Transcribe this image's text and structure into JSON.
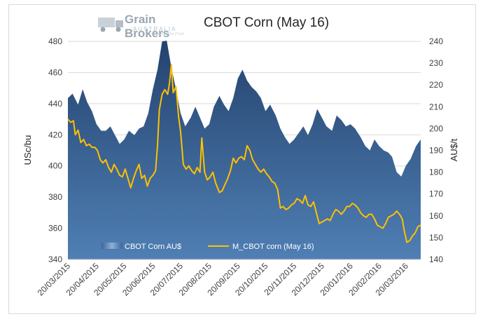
{
  "chart_data": {
    "type": "area",
    "title": "CBOT Corn (May 16)",
    "logo": {
      "brand": "Grain Brokers",
      "sub": "AUSTRALIA",
      "tag": "Ahead of the Field"
    },
    "y_left": {
      "label": "USc/bu",
      "range": [
        340,
        480
      ],
      "ticks": [
        "340",
        "360",
        "380",
        "400",
        "420",
        "440",
        "460",
        "480"
      ]
    },
    "y_right": {
      "label": "AU$/t",
      "range": [
        140,
        240
      ],
      "ticks": [
        "140",
        "150",
        "160",
        "170",
        "180",
        "190",
        "200",
        "210",
        "220",
        "230",
        "240"
      ]
    },
    "x_ticks": [
      "20/03/2015",
      "20/04/2015",
      "20/05/2015",
      "20/06/2015",
      "20/07/2015",
      "20/08/2015",
      "20/09/2015",
      "20/10/2015",
      "20/11/2015",
      "20/12/2015",
      "20/01/2016",
      "20/02/2016",
      "20/03/2016"
    ],
    "x_range": [
      "2015-03-20",
      "2016-04-05"
    ],
    "grid": "horizontal",
    "legend_position": "bottom-left inside plot",
    "series": [
      {
        "name": "CBOT Corn AU$",
        "kind": "area",
        "axis": "right",
        "color": "#2f5383",
        "points": [
          [
            "2015-03-20",
            214
          ],
          [
            "2015-03-25",
            216
          ],
          [
            "2015-03-31",
            211
          ],
          [
            "2015-04-05",
            218
          ],
          [
            "2015-04-10",
            212
          ],
          [
            "2015-04-15",
            208
          ],
          [
            "2015-04-20",
            202
          ],
          [
            "2015-04-25",
            199
          ],
          [
            "2015-04-30",
            199
          ],
          [
            "2015-05-05",
            201
          ],
          [
            "2015-05-10",
            197
          ],
          [
            "2015-05-15",
            193
          ],
          [
            "2015-05-20",
            195
          ],
          [
            "2015-05-25",
            199
          ],
          [
            "2015-05-31",
            197
          ],
          [
            "2015-06-05",
            200
          ],
          [
            "2015-06-10",
            201
          ],
          [
            "2015-06-15",
            207
          ],
          [
            "2015-06-20",
            218
          ],
          [
            "2015-06-25",
            227
          ],
          [
            "2015-06-30",
            240
          ],
          [
            "2015-07-05",
            241
          ],
          [
            "2015-07-10",
            228
          ],
          [
            "2015-07-15",
            218
          ],
          [
            "2015-07-20",
            207
          ],
          [
            "2015-07-25",
            201
          ],
          [
            "2015-07-31",
            205
          ],
          [
            "2015-08-05",
            210
          ],
          [
            "2015-08-10",
            205
          ],
          [
            "2015-08-15",
            200
          ],
          [
            "2015-08-20",
            202
          ],
          [
            "2015-08-25",
            210
          ],
          [
            "2015-08-31",
            215
          ],
          [
            "2015-09-05",
            211
          ],
          [
            "2015-09-10",
            208
          ],
          [
            "2015-09-15",
            214
          ],
          [
            "2015-09-20",
            223
          ],
          [
            "2015-09-25",
            227
          ],
          [
            "2015-09-30",
            222
          ],
          [
            "2015-10-05",
            219
          ],
          [
            "2015-10-10",
            217
          ],
          [
            "2015-10-15",
            214
          ],
          [
            "2015-10-20",
            208
          ],
          [
            "2015-10-25",
            211
          ],
          [
            "2015-10-31",
            206
          ],
          [
            "2015-11-05",
            200
          ],
          [
            "2015-11-10",
            196
          ],
          [
            "2015-11-15",
            193
          ],
          [
            "2015-11-20",
            195
          ],
          [
            "2015-11-25",
            198
          ],
          [
            "2015-11-30",
            201
          ],
          [
            "2015-12-05",
            197
          ],
          [
            "2015-12-10",
            202
          ],
          [
            "2015-12-15",
            209
          ],
          [
            "2015-12-20",
            205
          ],
          [
            "2015-12-25",
            201
          ],
          [
            "2015-12-31",
            199
          ],
          [
            "2016-01-05",
            206
          ],
          [
            "2016-01-10",
            204
          ],
          [
            "2016-01-15",
            201
          ],
          [
            "2016-01-20",
            202
          ],
          [
            "2016-01-25",
            200
          ],
          [
            "2016-01-31",
            196
          ],
          [
            "2016-02-05",
            192
          ],
          [
            "2016-02-10",
            190
          ],
          [
            "2016-02-15",
            195
          ],
          [
            "2016-02-20",
            192
          ],
          [
            "2016-02-25",
            190
          ],
          [
            "2016-03-01",
            189
          ],
          [
            "2016-03-05",
            187
          ],
          [
            "2016-03-10",
            180
          ],
          [
            "2016-03-15",
            178
          ],
          [
            "2016-03-20",
            183
          ],
          [
            "2016-03-25",
            186
          ],
          [
            "2016-03-31",
            192
          ],
          [
            "2016-04-05",
            195
          ]
        ]
      },
      {
        "name": "M_CBOT corn (May 16)",
        "kind": "line",
        "axis": "left",
        "color": "#ffc000",
        "points": [
          [
            "2015-03-20",
            430
          ],
          [
            "2015-03-23",
            428
          ],
          [
            "2015-03-26",
            429
          ],
          [
            "2015-03-28",
            420
          ],
          [
            "2015-03-31",
            423
          ],
          [
            "2015-04-03",
            415
          ],
          [
            "2015-04-06",
            417
          ],
          [
            "2015-04-09",
            413
          ],
          [
            "2015-04-12",
            414
          ],
          [
            "2015-04-15",
            412
          ],
          [
            "2015-04-18",
            412
          ],
          [
            "2015-04-21",
            410
          ],
          [
            "2015-04-24",
            404
          ],
          [
            "2015-04-27",
            402
          ],
          [
            "2015-04-30",
            404
          ],
          [
            "2015-05-03",
            399
          ],
          [
            "2015-05-06",
            396
          ],
          [
            "2015-05-09",
            401
          ],
          [
            "2015-05-12",
            398
          ],
          [
            "2015-05-15",
            394
          ],
          [
            "2015-05-18",
            393
          ],
          [
            "2015-05-21",
            398
          ],
          [
            "2015-05-24",
            392
          ],
          [
            "2015-05-27",
            386
          ],
          [
            "2015-05-30",
            392
          ],
          [
            "2015-06-02",
            397
          ],
          [
            "2015-06-05",
            401
          ],
          [
            "2015-06-08",
            392
          ],
          [
            "2015-06-11",
            394
          ],
          [
            "2015-06-14",
            387
          ],
          [
            "2015-06-17",
            392
          ],
          [
            "2015-06-20",
            394
          ],
          [
            "2015-06-23",
            397
          ],
          [
            "2015-06-25",
            413
          ],
          [
            "2015-06-27",
            436
          ],
          [
            "2015-06-30",
            446
          ],
          [
            "2015-07-03",
            449
          ],
          [
            "2015-07-06",
            446
          ],
          [
            "2015-07-08",
            453
          ],
          [
            "2015-07-10",
            465
          ],
          [
            "2015-07-12",
            447
          ],
          [
            "2015-07-15",
            451
          ],
          [
            "2015-07-18",
            431
          ],
          [
            "2015-07-20",
            422
          ],
          [
            "2015-07-23",
            401
          ],
          [
            "2015-07-26",
            398
          ],
          [
            "2015-07-29",
            400
          ],
          [
            "2015-08-01",
            397
          ],
          [
            "2015-08-04",
            395
          ],
          [
            "2015-08-07",
            399
          ],
          [
            "2015-08-10",
            396
          ],
          [
            "2015-08-12",
            418
          ],
          [
            "2015-08-15",
            396
          ],
          [
            "2015-08-18",
            391
          ],
          [
            "2015-08-21",
            393
          ],
          [
            "2015-08-24",
            396
          ],
          [
            "2015-08-27",
            389
          ],
          [
            "2015-08-31",
            383
          ],
          [
            "2015-09-03",
            384
          ],
          [
            "2015-09-06",
            388
          ],
          [
            "2015-09-09",
            392
          ],
          [
            "2015-09-12",
            397
          ],
          [
            "2015-09-15",
            405
          ],
          [
            "2015-09-18",
            402
          ],
          [
            "2015-09-21",
            405
          ],
          [
            "2015-09-24",
            406
          ],
          [
            "2015-09-27",
            404
          ],
          [
            "2015-09-30",
            413
          ],
          [
            "2015-10-03",
            410
          ],
          [
            "2015-10-06",
            404
          ],
          [
            "2015-10-09",
            401
          ],
          [
            "2015-10-12",
            398
          ],
          [
            "2015-10-15",
            396
          ],
          [
            "2015-10-18",
            398
          ],
          [
            "2015-10-21",
            395
          ],
          [
            "2015-10-24",
            393
          ],
          [
            "2015-10-27",
            390
          ],
          [
            "2015-10-30",
            389
          ],
          [
            "2015-11-02",
            385
          ],
          [
            "2015-11-05",
            373
          ],
          [
            "2015-11-08",
            374
          ],
          [
            "2015-11-11",
            372
          ],
          [
            "2015-11-14",
            373
          ],
          [
            "2015-11-17",
            375
          ],
          [
            "2015-11-20",
            376
          ],
          [
            "2015-11-23",
            379
          ],
          [
            "2015-11-26",
            378
          ],
          [
            "2015-11-29",
            376
          ],
          [
            "2015-12-02",
            381
          ],
          [
            "2015-12-05",
            375
          ],
          [
            "2015-12-08",
            374
          ],
          [
            "2015-12-11",
            377
          ],
          [
            "2015-12-14",
            370
          ],
          [
            "2015-12-17",
            363
          ],
          [
            "2015-12-20",
            364
          ],
          [
            "2015-12-23",
            365
          ],
          [
            "2015-12-26",
            366
          ],
          [
            "2015-12-29",
            365
          ],
          [
            "2016-01-01",
            369
          ],
          [
            "2016-01-04",
            372
          ],
          [
            "2016-01-07",
            371
          ],
          [
            "2016-01-10",
            369
          ],
          [
            "2016-01-13",
            371
          ],
          [
            "2016-01-16",
            374
          ],
          [
            "2016-01-19",
            374
          ],
          [
            "2016-01-22",
            376
          ],
          [
            "2016-01-25",
            375
          ],
          [
            "2016-01-28",
            373
          ],
          [
            "2016-01-31",
            370
          ],
          [
            "2016-02-03",
            368
          ],
          [
            "2016-02-06",
            367
          ],
          [
            "2016-02-09",
            369
          ],
          [
            "2016-02-12",
            369
          ],
          [
            "2016-02-15",
            366
          ],
          [
            "2016-02-18",
            362
          ],
          [
            "2016-02-21",
            361
          ],
          [
            "2016-02-24",
            360
          ],
          [
            "2016-02-27",
            363
          ],
          [
            "2016-03-01",
            367
          ],
          [
            "2016-03-04",
            368
          ],
          [
            "2016-03-07",
            369
          ],
          [
            "2016-03-10",
            371
          ],
          [
            "2016-03-13",
            369
          ],
          [
            "2016-03-16",
            366
          ],
          [
            "2016-03-18",
            359
          ],
          [
            "2016-03-21",
            351
          ],
          [
            "2016-03-24",
            352
          ],
          [
            "2016-03-27",
            355
          ],
          [
            "2016-03-30",
            357
          ],
          [
            "2016-04-02",
            361
          ],
          [
            "2016-04-05",
            362
          ]
        ]
      }
    ]
  }
}
